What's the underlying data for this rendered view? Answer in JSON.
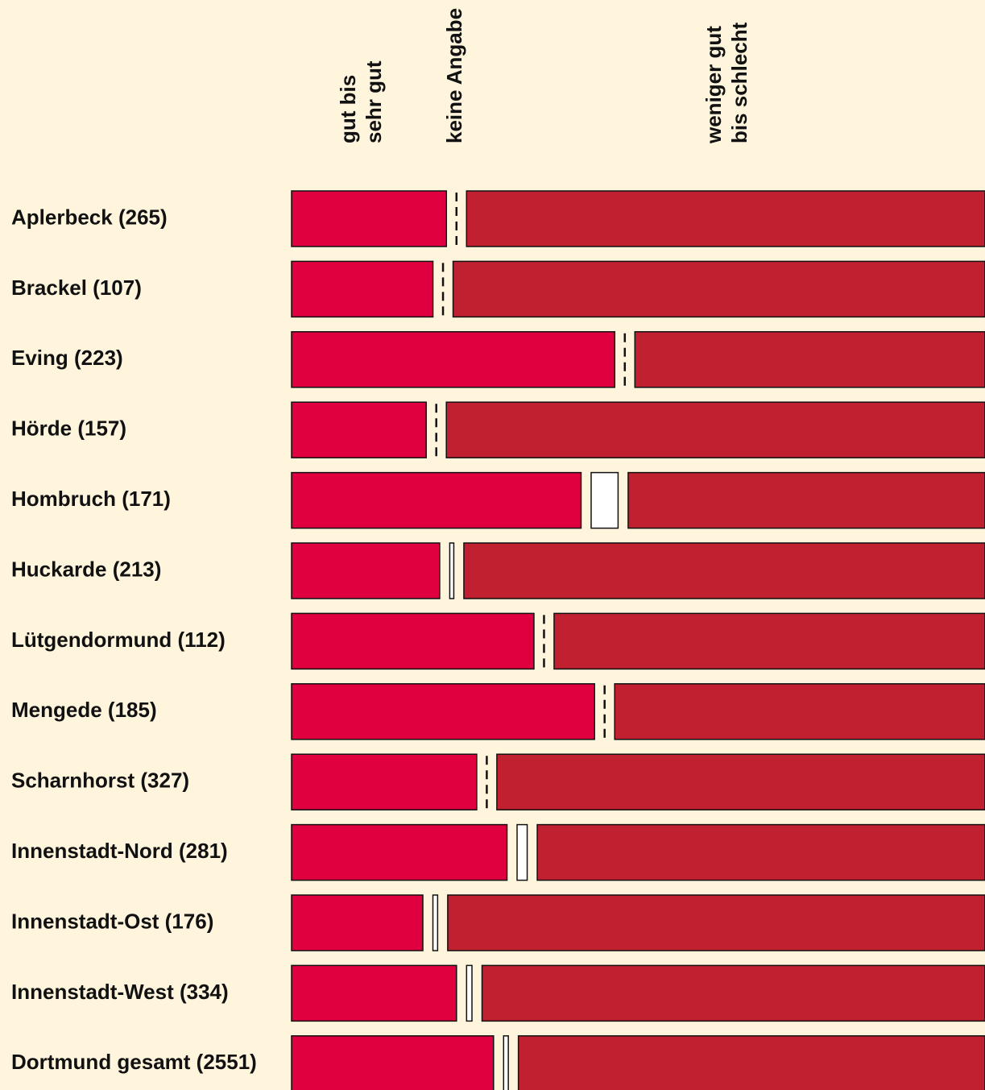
{
  "chart_data": {
    "type": "stacked-bar-horizontal",
    "categories": [
      "Aplerbeck (265)",
      "Brackel (107)",
      "Eving (223)",
      "Hörde (157)",
      "Hombruch (171)",
      "Huckarde (213)",
      "Lütgendormund (112)",
      "Mengede (185)",
      "Scharnhorst (327)",
      "Innenstadt-Nord (281)",
      "Innenstadt-Ost (176)",
      "Innenstadt-West (334)",
      "Dortmund gesamt (2551)"
    ],
    "series": [
      {
        "name": "gut bis sehr gut",
        "color": "#e0003f",
        "values": [
          23,
          21,
          48,
          20,
          43,
          22,
          36,
          45,
          27.5,
          32,
          19.5,
          24.5,
          30
        ]
      },
      {
        "name": "keine Angabe",
        "color": "#ffffff",
        "values": [
          0,
          0,
          0,
          0,
          4,
          0.6,
          0,
          0,
          0,
          1.5,
          0.7,
          0.8,
          0.7
        ]
      },
      {
        "name": "weniger gut bis schlecht",
        "color": "#c0202f",
        "values": [
          77,
          79,
          52,
          80,
          53,
          77.4,
          64,
          55,
          72.5,
          66.5,
          79.8,
          74.7,
          69.3
        ]
      }
    ]
  }
}
